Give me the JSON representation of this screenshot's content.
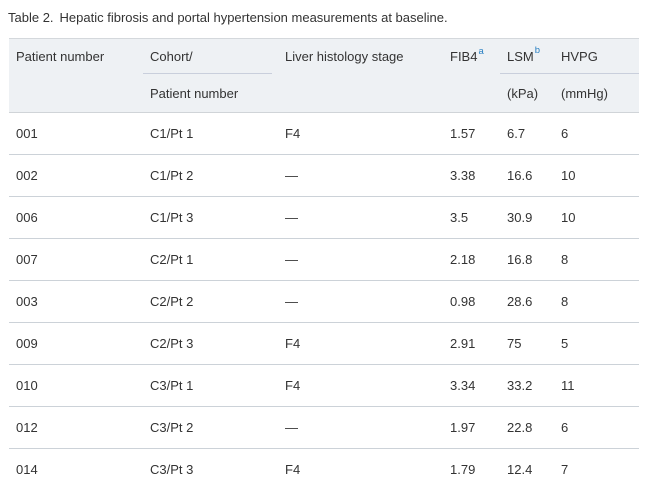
{
  "caption": {
    "label": "Table 2.",
    "text": "Hepatic fibrosis and portal hypertension measurements at baseline."
  },
  "colors": {
    "header_background": "#eef1f4",
    "footnote_link_blue": "#2a80c2",
    "row_divider": "#ccd2d8",
    "text": "#333333"
  },
  "table": {
    "header": {
      "patient_number": "Patient number",
      "cohort_line1": "Cohort/",
      "cohort_line2": "Patient number",
      "histology": "Liver histology stage",
      "fib4": "FIB4",
      "fib4_footnote": "a",
      "lsm": "LSM",
      "lsm_footnote": "b",
      "lsm_unit": "(kPa)",
      "hvpg": "HVPG",
      "hvpg_unit": "(mmHg)"
    },
    "rows": [
      {
        "patient": "001",
        "cohort": "C1/Pt 1",
        "histology": "F4",
        "fib4": "1.57",
        "lsm": "6.7",
        "hvpg": "6"
      },
      {
        "patient": "002",
        "cohort": "C1/Pt 2",
        "histology": "—",
        "fib4": "3.38",
        "lsm": "16.6",
        "hvpg": "10"
      },
      {
        "patient": "006",
        "cohort": "C1/Pt 3",
        "histology": "—",
        "fib4": "3.5",
        "lsm": "30.9",
        "hvpg": "10"
      },
      {
        "patient": "007",
        "cohort": "C2/Pt 1",
        "histology": "—",
        "fib4": "2.18",
        "lsm": "16.8",
        "hvpg": "8"
      },
      {
        "patient": "003",
        "cohort": "C2/Pt 2",
        "histology": "—",
        "fib4": "0.98",
        "lsm": "28.6",
        "hvpg": "8"
      },
      {
        "patient": "009",
        "cohort": "C2/Pt 3",
        "histology": "F4",
        "fib4": "2.91",
        "lsm": "75",
        "hvpg": "5"
      },
      {
        "patient": "010",
        "cohort": "C3/Pt 1",
        "histology": "F4",
        "fib4": "3.34",
        "lsm": "33.2",
        "hvpg": "11"
      },
      {
        "patient": "012",
        "cohort": "C3/Pt 2",
        "histology": "—",
        "fib4": "1.97",
        "lsm": "22.8",
        "hvpg": "6"
      },
      {
        "patient": "014",
        "cohort": "C3/Pt 3",
        "histology": "F4",
        "fib4": "1.79",
        "lsm": "12.4",
        "hvpg": "7"
      }
    ]
  }
}
